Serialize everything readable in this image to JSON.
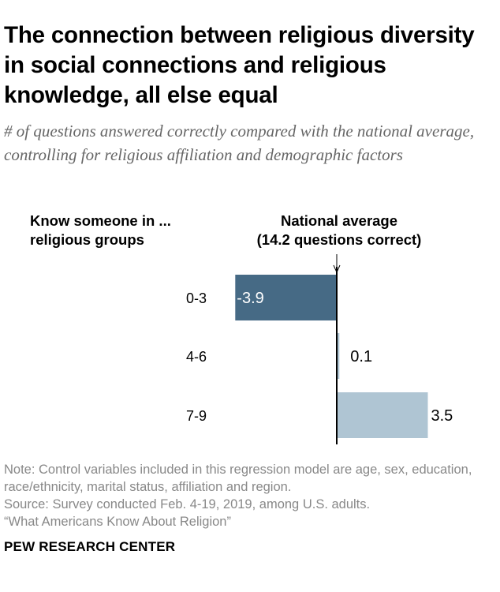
{
  "title": "The connection between religious diversity in social connections and religious knowledge, all else equal",
  "subtitle": "# of questions answered correctly compared with the national average, controlling for religious affiliation and demographic factors",
  "left_header": [
    "Know someone in ...",
    "religious groups"
  ],
  "right_header": [
    "National average",
    "(14.2 questions correct)"
  ],
  "chart_data": {
    "type": "bar",
    "orientation": "horizontal",
    "categories": [
      "0-3",
      "4-6",
      "7-9"
    ],
    "values": [
      -3.9,
      0.1,
      3.5
    ],
    "value_labels": [
      "-3.9",
      "0.1",
      "3.5"
    ],
    "baseline": 0,
    "colors": {
      "negative": "#466a85",
      "positive": "#afc5d3"
    }
  },
  "notes": [
    "Note: Control variables included in this regression model are age, sex, education, race/ethnicity, marital status, affiliation and region.",
    "Source: Survey conducted Feb. 4-19, 2019, among U.S. adults.",
    "“What Americans Know About Religion”"
  ],
  "source_org": "PEW RESEARCH CENTER"
}
